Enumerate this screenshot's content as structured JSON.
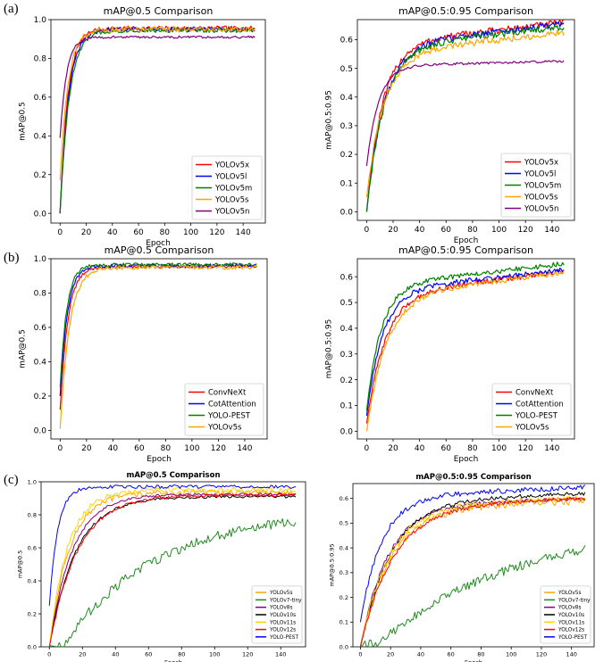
{
  "panel_labels": [
    "(a)",
    "(b)",
    "(c)"
  ],
  "chart_data": [
    {
      "type": "line",
      "title": "mAP@0.5 Comparison",
      "xlabel": "Epoch",
      "ylabel": "mAP@0.5",
      "xlim": [
        -7,
        157
      ],
      "ylim": [
        -0.05,
        1.0
      ],
      "xticks": [
        "0",
        "20",
        "40",
        "60",
        "80",
        "100",
        "120",
        "140"
      ],
      "yticks": [
        "0.0",
        "0.2",
        "0.4",
        "0.6",
        "0.8",
        "1.0"
      ],
      "legend_position": "lower-right",
      "bold_title": false,
      "series": [
        {
          "name": "YOLOv5x",
          "color": "#ff0000",
          "start": 0.0,
          "plateau": 0.955,
          "tau": 6,
          "noise": 0.012
        },
        {
          "name": "YOLOv5l",
          "color": "#0000ff",
          "start": 0.0,
          "plateau": 0.95,
          "tau": 6.5,
          "noise": 0.012
        },
        {
          "name": "YOLOv5m",
          "color": "#008000",
          "start": 0.0,
          "plateau": 0.945,
          "tau": 7,
          "noise": 0.012
        },
        {
          "name": "YOLOv5s",
          "color": "#ffa500",
          "start": 0.17,
          "plateau": 0.95,
          "tau": 6,
          "noise": 0.014
        },
        {
          "name": "YOLOv5n",
          "color": "#800080",
          "start": 0.39,
          "plateau": 0.91,
          "tau": 5,
          "noise": 0.006
        }
      ]
    },
    {
      "type": "line",
      "title": "mAP@0.5:0.95 Comparison",
      "xlabel": "Epoch",
      "ylabel": "mAP@0.5:0.95",
      "xlim": [
        -7,
        157
      ],
      "ylim": [
        -0.03,
        0.67
      ],
      "xticks": [
        "0",
        "20",
        "40",
        "60",
        "80",
        "100",
        "120",
        "140"
      ],
      "yticks": [
        "0.0",
        "0.1",
        "0.2",
        "0.3",
        "0.4",
        "0.5",
        "0.6"
      ],
      "legend_position": "lower-right",
      "bold_title": false,
      "series": [
        {
          "name": "YOLOv5x",
          "color": "#ff0000",
          "start": 0.0,
          "plateau": 0.66,
          "tau": 12,
          "noise": 0.012,
          "drift": 0.12
        },
        {
          "name": "YOLOv5l",
          "color": "#0000ff",
          "start": 0.0,
          "plateau": 0.655,
          "tau": 13,
          "noise": 0.012,
          "drift": 0.12
        },
        {
          "name": "YOLOv5m",
          "color": "#008000",
          "start": 0.0,
          "plateau": 0.645,
          "tau": 13,
          "noise": 0.012,
          "drift": 0.12
        },
        {
          "name": "YOLOv5s",
          "color": "#ffa500",
          "start": 0.05,
          "plateau": 0.625,
          "tau": 13,
          "noise": 0.012,
          "drift": 0.12
        },
        {
          "name": "YOLOv5n",
          "color": "#800080",
          "start": 0.16,
          "plateau": 0.525,
          "tau": 9,
          "noise": 0.004,
          "drift": 0.03
        }
      ]
    },
    {
      "type": "line",
      "title": "mAP@0.5 Comparison",
      "xlabel": "Epoch",
      "ylabel": "mAP@0.5",
      "xlim": [
        -7,
        157
      ],
      "ylim": [
        -0.05,
        1.0
      ],
      "xticks": [
        "0",
        "20",
        "40",
        "60",
        "80",
        "100",
        "120",
        "140"
      ],
      "yticks": [
        "0.0",
        "0.2",
        "0.4",
        "0.6",
        "0.8",
        "1.0"
      ],
      "legend_position": "lower-right",
      "bold_title": false,
      "series": [
        {
          "name": "ConvNeXt",
          "color": "#ff0000",
          "start": 0.12,
          "plateau": 0.955,
          "tau": 6,
          "noise": 0.01
        },
        {
          "name": "CotAttention",
          "color": "#0000ff",
          "start": 0.2,
          "plateau": 0.96,
          "tau": 5.5,
          "noise": 0.01
        },
        {
          "name": "YOLO-PEST",
          "color": "#008000",
          "start": 0.25,
          "plateau": 0.965,
          "tau": 5,
          "noise": 0.01
        },
        {
          "name": "YOLOv5s",
          "color": "#ffa500",
          "start": 0.01,
          "plateau": 0.95,
          "tau": 7,
          "noise": 0.012
        }
      ]
    },
    {
      "type": "line",
      "title": "mAP@0.5:0.95 Comparison",
      "xlabel": "Epoch",
      "ylabel": "mAP@0.5:0.95",
      "xlim": [
        -7,
        157
      ],
      "ylim": [
        -0.03,
        0.67
      ],
      "xticks": [
        "0",
        "20",
        "40",
        "60",
        "80",
        "100",
        "120",
        "140"
      ],
      "yticks": [
        "0.0",
        "0.1",
        "0.2",
        "0.3",
        "0.4",
        "0.5",
        "0.6"
      ],
      "legend_position": "lower-right",
      "bold_title": false,
      "series": [
        {
          "name": "ConvNeXt",
          "color": "#ff0000",
          "start": 0.03,
          "plateau": 0.62,
          "tau": 14,
          "noise": 0.01,
          "drift": 0.15
        },
        {
          "name": "CotAttention",
          "color": "#0000ff",
          "start": 0.06,
          "plateau": 0.625,
          "tau": 12,
          "noise": 0.01,
          "drift": 0.13
        },
        {
          "name": "YOLO-PEST",
          "color": "#008000",
          "start": 0.08,
          "plateau": 0.65,
          "tau": 11,
          "noise": 0.01,
          "drift": 0.13
        },
        {
          "name": "YOLOv5s",
          "color": "#ffa500",
          "start": 0.0,
          "plateau": 0.615,
          "tau": 15,
          "noise": 0.01,
          "drift": 0.15
        }
      ]
    },
    {
      "type": "line",
      "title": "mAP@0.5 Comparison",
      "xlabel": "Epoch",
      "ylabel": "mAP@0.5",
      "xlim": [
        -5,
        155
      ],
      "ylim": [
        0.0,
        1.0
      ],
      "xticks": [
        "0",
        "20",
        "40",
        "60",
        "80",
        "100",
        "120",
        "140"
      ],
      "yticks": [
        "0.0",
        "0.2",
        "0.4",
        "0.6",
        "0.8",
        "1.0"
      ],
      "legend_position": "lower-right",
      "bold_title": true,
      "series": [
        {
          "name": "YOLOv5s",
          "color": "#ffa500",
          "start": 0.0,
          "plateau": 0.935,
          "tau": 12,
          "noise": 0.018
        },
        {
          "name": "YOLOv7-tiny",
          "color": "#228b22",
          "start": 0.0,
          "plateau": 0.82,
          "tau": 55,
          "noise": 0.03,
          "delay": 8
        },
        {
          "name": "YOLOv8s",
          "color": "#800080",
          "start": 0.0,
          "plateau": 0.925,
          "tau": 14,
          "noise": 0.008
        },
        {
          "name": "YOLOv10s",
          "color": "#000000",
          "start": 0.0,
          "plateau": 0.91,
          "tau": 16,
          "noise": 0.008
        },
        {
          "name": "YOLOv11s",
          "color": "#ffd700",
          "start": 0.0,
          "plateau": 0.95,
          "tau": 11,
          "noise": 0.016
        },
        {
          "name": "YOLOv12s",
          "color": "#ff0000",
          "start": 0.0,
          "plateau": 0.92,
          "tau": 17,
          "noise": 0.01
        },
        {
          "name": "YOLO-PEST",
          "color": "#0000ff",
          "start": 0.25,
          "plateau": 0.97,
          "tau": 5,
          "noise": 0.01
        }
      ]
    },
    {
      "type": "line",
      "title": "mAP@0.5:0.95 Comparison",
      "xlabel": "Epoch",
      "ylabel": "mAP@0.5:0.95",
      "xlim": [
        -5,
        155
      ],
      "ylim": [
        0.0,
        0.66
      ],
      "xticks": [
        "0",
        "20",
        "40",
        "60",
        "80",
        "100",
        "120",
        "140"
      ],
      "yticks": [
        "0.0",
        "0.1",
        "0.2",
        "0.3",
        "0.4",
        "0.5",
        "0.6"
      ],
      "legend_position": "lower-right",
      "bold_title": true,
      "series": [
        {
          "name": "YOLOv5s",
          "color": "#ffa500",
          "start": 0.0,
          "plateau": 0.59,
          "tau": 20,
          "noise": 0.015,
          "drift": 0.05
        },
        {
          "name": "YOLOv7-tiny",
          "color": "#228b22",
          "start": 0.0,
          "plateau": 0.5,
          "tau": 90,
          "noise": 0.018,
          "delay": 10
        },
        {
          "name": "YOLOv8s",
          "color": "#800080",
          "start": 0.0,
          "plateau": 0.6,
          "tau": 18,
          "noise": 0.008,
          "drift": 0.05
        },
        {
          "name": "YOLOv10s",
          "color": "#000000",
          "start": 0.0,
          "plateau": 0.62,
          "tau": 20,
          "noise": 0.008,
          "drift": 0.05
        },
        {
          "name": "YOLOv11s",
          "color": "#ffd700",
          "start": 0.0,
          "plateau": 0.6,
          "tau": 19,
          "noise": 0.012,
          "drift": 0.05
        },
        {
          "name": "YOLOv12s",
          "color": "#ff0000",
          "start": 0.0,
          "plateau": 0.6,
          "tau": 22,
          "noise": 0.008,
          "drift": 0.05
        },
        {
          "name": "YOLO-PEST",
          "color": "#0000ff",
          "start": 0.1,
          "plateau": 0.645,
          "tau": 14,
          "noise": 0.01,
          "drift": 0.06
        }
      ]
    }
  ]
}
